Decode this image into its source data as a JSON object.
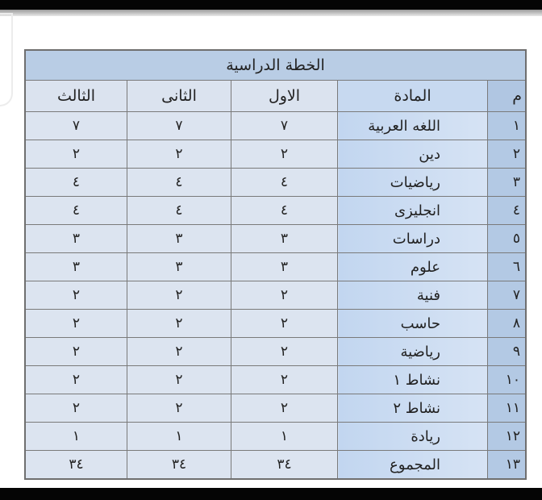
{
  "table": {
    "title": "الخطة الدراسية",
    "headers": {
      "num": "م",
      "subject": "المادة",
      "first": "الاول",
      "second": "الثانى",
      "third": "الثالث"
    },
    "rows": [
      {
        "num": "١",
        "subject": "اللغه العربية",
        "first": "٧",
        "second": "٧",
        "third": "٧"
      },
      {
        "num": "٢",
        "subject": "دين",
        "first": "٢",
        "second": "٢",
        "third": "٢"
      },
      {
        "num": "٣",
        "subject": "رياضيات",
        "first": "٤",
        "second": "٤",
        "third": "٤"
      },
      {
        "num": "٤",
        "subject": "انجليزى",
        "first": "٤",
        "second": "٤",
        "third": "٤"
      },
      {
        "num": "٥",
        "subject": "دراسات",
        "first": "٣",
        "second": "٣",
        "third": "٣"
      },
      {
        "num": "٦",
        "subject": "علوم",
        "first": "٣",
        "second": "٣",
        "third": "٣"
      },
      {
        "num": "٧",
        "subject": "فنية",
        "first": "٢",
        "second": "٢",
        "third": "٢"
      },
      {
        "num": "٨",
        "subject": "حاسب",
        "first": "٢",
        "second": "٢",
        "third": "٢"
      },
      {
        "num": "٩",
        "subject": "رياضية",
        "first": "٢",
        "second": "٢",
        "third": "٢"
      },
      {
        "num": "١٠",
        "subject": "نشاط ١",
        "first": "٢",
        "second": "٢",
        "third": "٢"
      },
      {
        "num": "١١",
        "subject": "نشاط ٢",
        "first": "٢",
        "second": "٢",
        "third": "٢"
      },
      {
        "num": "١٢",
        "subject": "ريادة",
        "first": "١",
        "second": "١",
        "third": "١"
      },
      {
        "num": "١٣",
        "subject": "المجموع",
        "first": "٣٤",
        "second": "٣٤",
        "third": "٣٤"
      }
    ]
  }
}
